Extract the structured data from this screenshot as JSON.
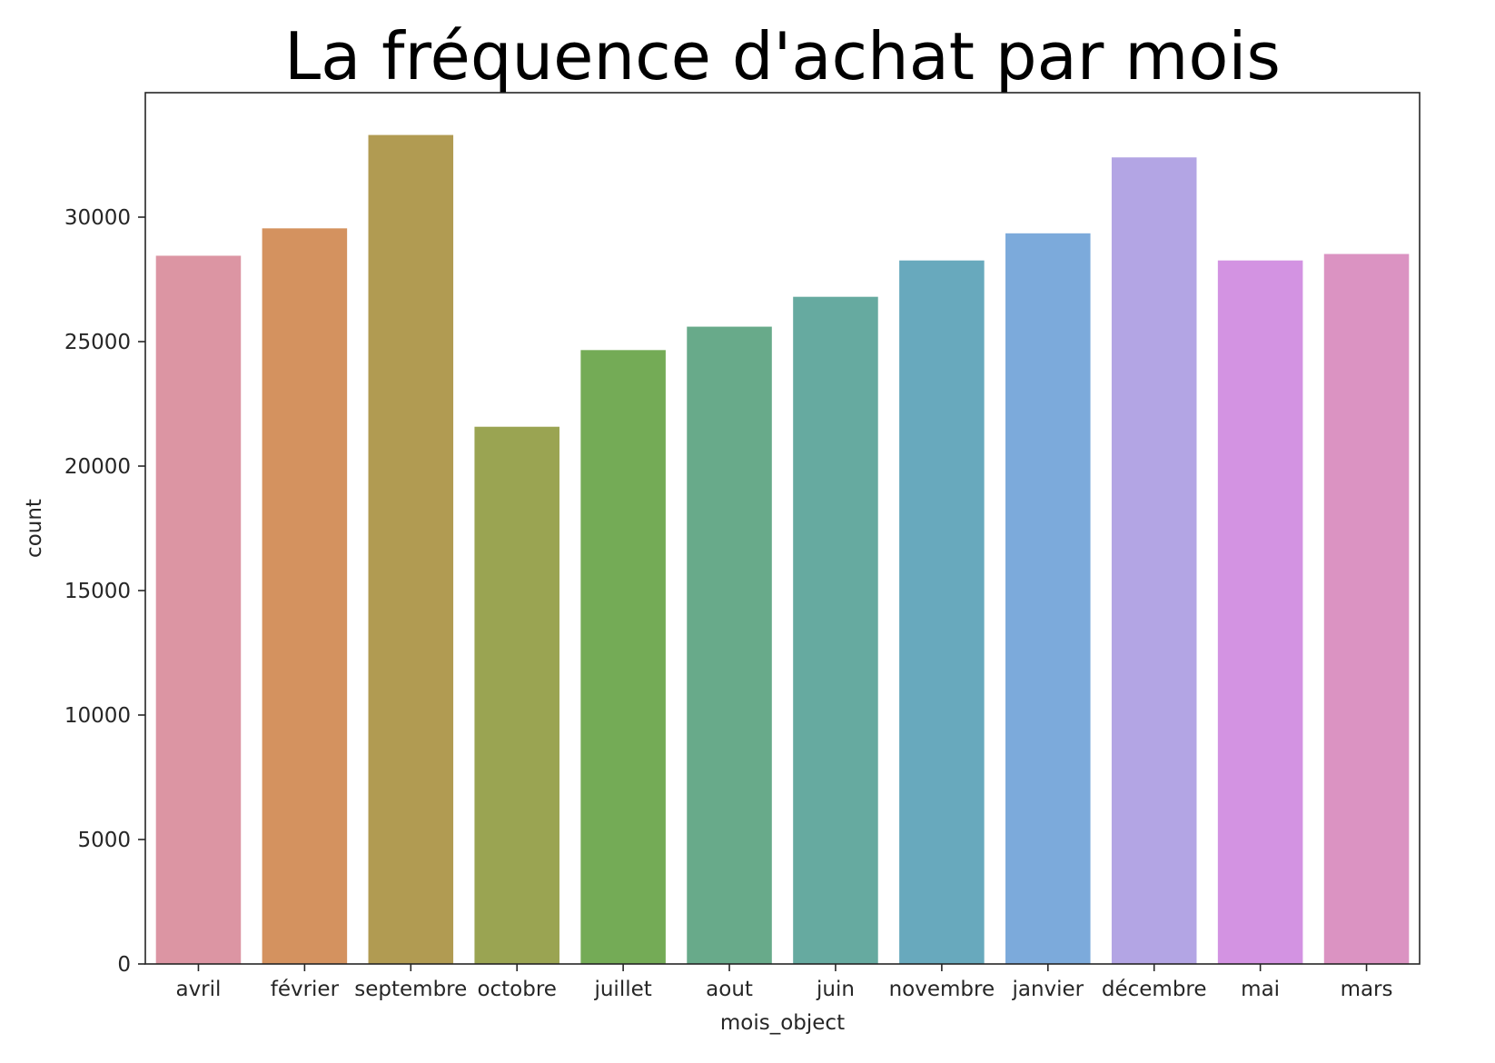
{
  "chart_data": {
    "type": "bar",
    "title": "La fréquence d'achat par mois",
    "xlabel": "mois_object",
    "ylabel": "count",
    "categories": [
      "avril",
      "février",
      "septembre",
      "octobre",
      "juillet",
      "aout",
      "juin",
      "novembre",
      "janvier",
      "décembre",
      "mai",
      "mars"
    ],
    "values": [
      28450,
      29550,
      33300,
      21580,
      24660,
      25600,
      26800,
      28260,
      29350,
      32400,
      28260,
      28520
    ],
    "colors": [
      "#dc95a3",
      "#d4925f",
      "#b19b52",
      "#9aa452",
      "#74ab56",
      "#68aa8a",
      "#66aaa0",
      "#68a9bd",
      "#7caadb",
      "#b3a5e4",
      "#d393e2",
      "#db93c2"
    ],
    "ylim": [
      0,
      35000
    ],
    "yticks": [
      0,
      5000,
      10000,
      15000,
      20000,
      25000,
      30000
    ],
    "ytick_labels": [
      "0",
      "5000",
      "10000",
      "15000",
      "20000",
      "25000",
      "30000"
    ],
    "grid": false,
    "legend": "none"
  }
}
